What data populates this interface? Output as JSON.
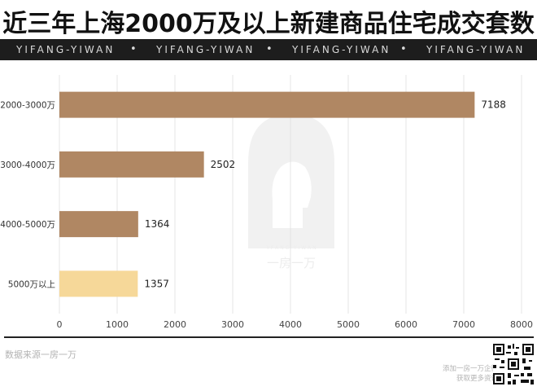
{
  "header": {
    "title": "近三年上海2000万及以上新建商品住宅成交套数",
    "banner_items": [
      "YIFANG-YIWAN",
      "YIFANG-YIWAN",
      "YIFANG-YIWAN",
      "YIFANG-YIWAN"
    ],
    "banner_separator": "•"
  },
  "watermark": {
    "text": "一房一万",
    "mark": "Y F A N G · Y I W A N"
  },
  "footer": {
    "source": "数据来源一房一万",
    "qr_caption_line1": "添加一房一万企微",
    "qr_caption_line2": "获取更多资讯"
  },
  "colors": {
    "bar": "#b08763",
    "bar_highlight": "#f6d899",
    "grid": "#e4e4e4",
    "banner": "#1d1d1d"
  },
  "chart_data": {
    "type": "bar",
    "orientation": "horizontal",
    "title": "近三年上海2000万及以上新建商品住宅成交套数",
    "categories": [
      "2000-3000万",
      "3000-4000万",
      "4000-5000万",
      "5000万以上"
    ],
    "values": [
      7188,
      2502,
      1364,
      1357
    ],
    "data_labels": [
      "7188",
      "2502",
      "1364",
      "1357"
    ],
    "xlim": [
      0,
      8000
    ],
    "xticks": [
      "0",
      "1000",
      "2000",
      "3000",
      "4000",
      "5000",
      "6000",
      "7000",
      "8000"
    ],
    "grid": "vertical",
    "legend": "none"
  }
}
